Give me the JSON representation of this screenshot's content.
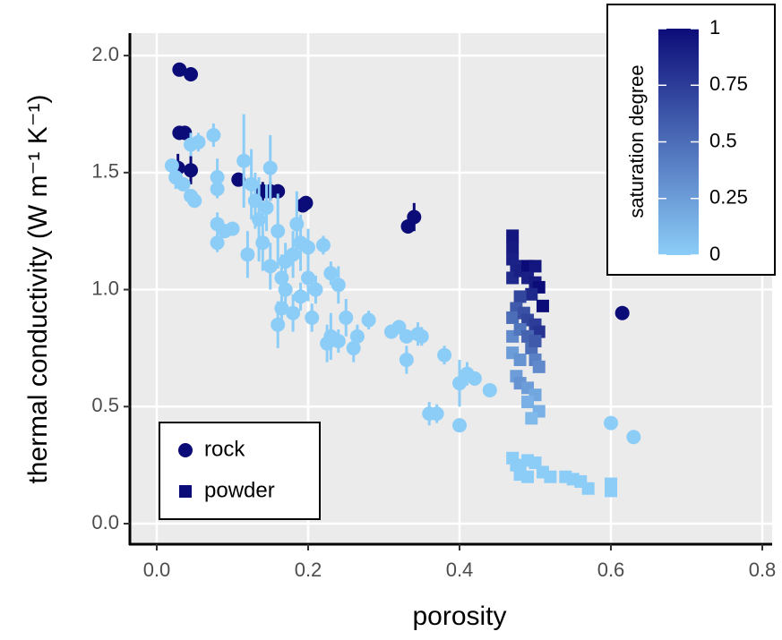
{
  "chart_data": {
    "type": "scatter",
    "xlabel": "porosity",
    "ylabel": "thermal conductivity (W m⁻¹ K⁻¹)",
    "xlim": [
      -0.0355,
      0.813
    ],
    "ylim": [
      -0.088,
      2.096
    ],
    "xticks": [
      {
        "value": 0,
        "label": "0.0"
      },
      0.2,
      0.4,
      0.6,
      0.8
    ],
    "yticks": [
      {
        "value": 0,
        "label": "0.0"
      },
      0.5,
      {
        "value": 1,
        "label": "1.0"
      },
      1.5,
      {
        "value": 2,
        "label": "2.0"
      }
    ],
    "grid": true,
    "legend": "bottom-left",
    "colorbar": {
      "title": "saturation degree",
      "lim": [
        0,
        1
      ],
      "ticks": [
        0,
        0.25,
        0.5,
        0.75,
        1
      ],
      "colors": [
        "#8ccdf8",
        "#0c0c78"
      ],
      "position": "top-right"
    },
    "series": [
      {
        "name": "rock",
        "marker": "circle",
        "color": "#0c0c78",
        "x": [
          0.03,
          0.045,
          0.03,
          0.037,
          0.028,
          0.045,
          0.108,
          0.14,
          0.15,
          0.16,
          0.193,
          0.197,
          0.332,
          0.34,
          0.615,
          0.02,
          0.025,
          0.035,
          0.045,
          0.05,
          0.045,
          0.055,
          0.075,
          0.08,
          0.08,
          0.08,
          0.09,
          0.08,
          0.1,
          0.115,
          0.125,
          0.13,
          0.12,
          0.135,
          0.14,
          0.15,
          0.16,
          0.165,
          0.17,
          0.18,
          0.185,
          0.19,
          0.2,
          0.21,
          0.205,
          0.18,
          0.16,
          0.165,
          0.22,
          0.23,
          0.24,
          0.225,
          0.23,
          0.24,
          0.25,
          0.26,
          0.265,
          0.28,
          0.31,
          0.32,
          0.33,
          0.33,
          0.345,
          0.35,
          0.36,
          0.37,
          0.38,
          0.4,
          0.4,
          0.41,
          0.42,
          0.44,
          0.6,
          0.63,
          0.15,
          0.145,
          0.17,
          0.19,
          0.2
        ],
        "values": [
          1.94,
          1.92,
          1.67,
          1.67,
          1.52,
          1.51,
          1.47,
          1.42,
          1.42,
          1.42,
          1.36,
          1.37,
          1.27,
          1.31,
          0.9,
          1.53,
          1.48,
          1.45,
          1.4,
          1.38,
          1.62,
          1.63,
          1.66,
          1.48,
          1.43,
          1.28,
          1.25,
          1.2,
          1.26,
          1.55,
          1.45,
          1.38,
          1.15,
          1.3,
          1.2,
          1.1,
          1.25,
          1.05,
          1,
          1.15,
          1.28,
          1.2,
          1.05,
          1,
          0.88,
          0.9,
          0.85,
          0.92,
          1.19,
          1.07,
          1.02,
          0.77,
          0.8,
          0.78,
          0.88,
          0.75,
          0.8,
          0.87,
          0.82,
          0.84,
          0.8,
          0.7,
          0.81,
          0.8,
          0.47,
          0.47,
          0.72,
          0.6,
          0.42,
          0.64,
          0.62,
          0.57,
          0.43,
          0.37,
          1.52,
          1.35,
          1.12,
          0.97,
          1.18
        ],
        "saturation": [
          1,
          1,
          1,
          1,
          1,
          1,
          1,
          1,
          1,
          1,
          1,
          1,
          1,
          1,
          1,
          0,
          0,
          0,
          0,
          0,
          0,
          0,
          0,
          0,
          0,
          0,
          0,
          0,
          0,
          0,
          0,
          0,
          0,
          0,
          0,
          0,
          0,
          0,
          0,
          0,
          0,
          0,
          0,
          0,
          0,
          0,
          0,
          0,
          0,
          0,
          0,
          0,
          0,
          0,
          0,
          0,
          0,
          0,
          0,
          0,
          0,
          0,
          0,
          0,
          0,
          0,
          0,
          0,
          0,
          0,
          0,
          0,
          0,
          0,
          0,
          0,
          0,
          0,
          0
        ],
        "yerr": [
          0.02,
          0.03,
          0.03,
          0.03,
          0.06,
          0.06,
          0.02,
          0.04,
          0.04,
          0.03,
          0.03,
          0.03,
          0.03,
          0.06,
          0.02,
          0.03,
          0.05,
          0.03,
          0.03,
          0.02,
          0.05,
          0.04,
          0.05,
          0.08,
          0.04,
          0.05,
          0.03,
          0.04,
          0.03,
          0.2,
          0.15,
          0.12,
          0.1,
          0.18,
          0.12,
          0.1,
          0.16,
          0.1,
          0.08,
          0.1,
          0.14,
          0.12,
          0.1,
          0.06,
          0.06,
          0.08,
          0.1,
          0.06,
          0.04,
          0.05,
          0.08,
          0.08,
          0.1,
          0.05,
          0.08,
          0.06,
          0.05,
          0.04,
          0.03,
          0.03,
          0.03,
          0.06,
          0.05,
          0.04,
          0.05,
          0.04,
          0.04,
          0.1,
          0.03,
          0.05,
          0.03,
          0.02,
          0.02,
          0.02,
          0.14,
          0.1,
          0.08,
          0.06,
          0.08
        ]
      },
      {
        "name": "powder",
        "marker": "square",
        "color": "#0c0c78",
        "x": [
          0.47,
          0.47,
          0.47,
          0.475,
          0.47,
          0.48,
          0.49,
          0.5,
          0.49,
          0.5,
          0.505,
          0.495,
          0.51,
          0.48,
          0.475,
          0.47,
          0.485,
          0.49,
          0.5,
          0.505,
          0.47,
          0.48,
          0.49,
          0.495,
          0.5,
          0.47,
          0.48,
          0.5,
          0.505,
          0.475,
          0.48,
          0.49,
          0.5,
          0.49,
          0.505,
          0.495,
          0.47,
          0.475,
          0.48,
          0.49,
          0.5,
          0.51,
          0.52,
          0.54,
          0.55,
          0.56,
          0.57,
          0.6,
          0.6,
          0.48,
          0.49
        ],
        "values": [
          1.23,
          1.18,
          1.13,
          1.1,
          1.05,
          1.08,
          1.1,
          1.1,
          1.05,
          1.03,
          1.01,
          0.98,
          0.93,
          0.97,
          0.92,
          0.88,
          0.9,
          0.87,
          0.85,
          0.82,
          0.8,
          0.83,
          0.8,
          0.75,
          0.78,
          0.73,
          0.7,
          0.7,
          0.67,
          0.63,
          0.6,
          0.58,
          0.55,
          0.52,
          0.48,
          0.45,
          0.28,
          0.25,
          0.24,
          0.27,
          0.26,
          0.22,
          0.2,
          0.2,
          0.19,
          0.18,
          0.15,
          0.17,
          0.14,
          0.21,
          0.2
        ],
        "saturation": [
          0.95,
          0.92,
          0.9,
          0.88,
          0.85,
          0.9,
          1,
          0.95,
          0.9,
          0.92,
          1,
          0.85,
          1,
          0.7,
          0.6,
          0.5,
          0.65,
          0.7,
          0.75,
          0.8,
          0.35,
          0.45,
          0.55,
          0.5,
          0.6,
          0.25,
          0.3,
          0.4,
          0.35,
          0.25,
          0.3,
          0.25,
          0.2,
          0.15,
          0.15,
          0.1,
          0,
          0,
          0,
          0,
          0,
          0,
          0,
          0,
          0,
          0,
          0,
          0,
          0,
          0,
          0
        ]
      }
    ]
  }
}
